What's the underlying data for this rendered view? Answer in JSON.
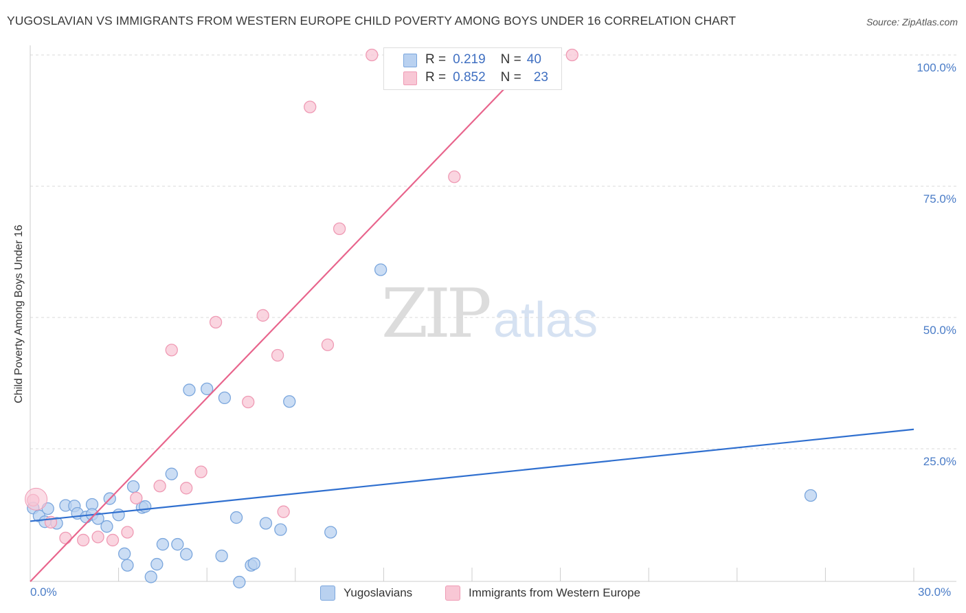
{
  "title": "YUGOSLAVIAN VS IMMIGRANTS FROM WESTERN EUROPE CHILD POVERTY AMONG BOYS UNDER 16 CORRELATION CHART",
  "source": "Source: ZipAtlas.com",
  "watermark": {
    "zip": "ZIP",
    "atlas": "atlas"
  },
  "legend_top": [
    {
      "r_label": "R =",
      "r_value": "0.219",
      "n_label": "N =",
      "n_value": "40"
    },
    {
      "r_label": "R =",
      "r_value": "0.852",
      "n_label": "N =",
      "n_value": "23"
    }
  ],
  "colors": {
    "blue_fill": "#b9d1f0",
    "blue_stroke": "#7aa6dd",
    "blue_line": "#2f6fcf",
    "pink_fill": "#f8c7d5",
    "pink_stroke": "#ef9ab4",
    "pink_line": "#e8648c",
    "tick_text": "#4a7cc7",
    "grid": "#d9d9d9"
  },
  "chart_data": {
    "type": "scatter",
    "title": "YUGOSLAVIAN VS IMMIGRANTS FROM WESTERN EUROPE CHILD POVERTY AMONG BOYS UNDER 16 CORRELATION CHART",
    "xlabel": "",
    "ylabel": "Child Poverty Among Boys Under 16",
    "xlim": [
      0,
      30
    ],
    "ylim": [
      0,
      100
    ],
    "x_tick_labels": [
      "0.0%",
      "30.0%"
    ],
    "y_tick_labels": [
      "25.0%",
      "50.0%",
      "75.0%",
      "100.0%"
    ],
    "y_ticks": [
      25,
      50,
      75,
      100
    ],
    "grid": "horizontal dashed",
    "legend_placement": "bottom",
    "series": [
      {
        "name": "Yugoslavians",
        "color": "#7aa6dd",
        "trend": {
          "x": [
            0,
            30
          ],
          "y": [
            11.2,
            28.7
          ]
        },
        "points": [
          [
            0.1,
            13.7
          ],
          [
            0.3,
            12.2
          ],
          [
            0.6,
            13.6
          ],
          [
            0.5,
            11.1
          ],
          [
            0.9,
            10.8
          ],
          [
            1.2,
            14.2
          ],
          [
            1.5,
            14.1
          ],
          [
            1.6,
            12.7
          ],
          [
            1.9,
            12.0
          ],
          [
            2.1,
            14.4
          ],
          [
            2.1,
            12.5
          ],
          [
            2.3,
            11.7
          ],
          [
            2.6,
            10.2
          ],
          [
            2.7,
            15.5
          ],
          [
            3.0,
            12.4
          ],
          [
            3.2,
            5.0
          ],
          [
            3.3,
            2.8
          ],
          [
            3.5,
            17.8
          ],
          [
            3.8,
            13.8
          ],
          [
            3.9,
            14.0
          ],
          [
            4.1,
            0.6
          ],
          [
            4.3,
            3.0
          ],
          [
            4.5,
            6.8
          ],
          [
            4.8,
            20.2
          ],
          [
            5.0,
            6.8
          ],
          [
            5.3,
            4.9
          ],
          [
            5.4,
            36.2
          ],
          [
            6.0,
            36.4
          ],
          [
            6.5,
            4.6
          ],
          [
            6.6,
            34.7
          ],
          [
            7.0,
            11.9
          ],
          [
            7.1,
            -0.4
          ],
          [
            7.5,
            2.8
          ],
          [
            7.6,
            3.1
          ],
          [
            8.0,
            10.8
          ],
          [
            8.5,
            9.6
          ],
          [
            8.8,
            34.0
          ],
          [
            10.2,
            9.1
          ],
          [
            11.9,
            59.1
          ],
          [
            26.5,
            16.1
          ]
        ]
      },
      {
        "name": "Immigrants from Western Europe",
        "color": "#ef9ab4",
        "trend": {
          "x": [
            0,
            17.2
          ],
          "y": [
            -0.3,
            100
          ]
        },
        "points": [
          [
            0.1,
            15.2
          ],
          [
            0.7,
            11.0
          ],
          [
            1.2,
            8.0
          ],
          [
            1.8,
            7.6
          ],
          [
            2.3,
            8.2
          ],
          [
            2.8,
            7.6
          ],
          [
            3.3,
            9.1
          ],
          [
            3.6,
            15.6
          ],
          [
            4.4,
            17.9
          ],
          [
            4.8,
            43.8
          ],
          [
            5.3,
            17.5
          ],
          [
            5.8,
            20.6
          ],
          [
            6.3,
            49.1
          ],
          [
            7.4,
            33.9
          ],
          [
            7.9,
            50.4
          ],
          [
            8.4,
            42.8
          ],
          [
            8.6,
            13.0
          ],
          [
            9.5,
            90.1
          ],
          [
            10.1,
            44.8
          ],
          [
            11.6,
            100.0
          ],
          [
            10.5,
            66.9
          ],
          [
            14.4,
            76.8
          ],
          [
            18.4,
            100.0
          ]
        ]
      }
    ]
  },
  "bottom_legend": [
    {
      "label": "Yugoslavians"
    },
    {
      "label": "Immigrants from Western Europe"
    }
  ]
}
